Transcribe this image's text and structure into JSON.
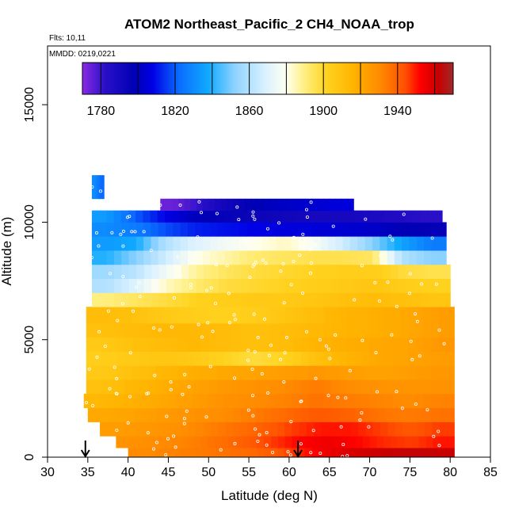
{
  "chart_data": {
    "type": "heatmap",
    "title": "ATOM2 Northeast_Pacific_2 CH4_NOAA_trop",
    "flights_label": "Flts: 10,11",
    "date_label": "MMDD: 0219,0221",
    "xlabel": "Latitude (deg N)",
    "ylabel": "Altitude (m)",
    "xlim": [
      30,
      85
    ],
    "ylim": [
      0,
      17500
    ],
    "x_ticks": [
      30,
      35,
      40,
      45,
      50,
      55,
      60,
      65,
      70,
      75,
      80,
      85
    ],
    "y_ticks": [
      0,
      5000,
      10000,
      15000
    ],
    "colorbar": {
      "min": 1770,
      "max": 1970,
      "tick_values": [
        1780,
        1820,
        1860,
        1900,
        1940
      ],
      "tick_labels": [
        "1780",
        "1820",
        "1860",
        "1900",
        "1940"
      ],
      "stops": [
        {
          "v": 1770,
          "c": "#8a2be2"
        },
        {
          "v": 1782,
          "c": "#2a0fc8"
        },
        {
          "v": 1798,
          "c": "#0000b4"
        },
        {
          "v": 1808,
          "c": "#0000e6"
        },
        {
          "v": 1822,
          "c": "#0a6cff"
        },
        {
          "v": 1838,
          "c": "#10aaff"
        },
        {
          "v": 1852,
          "c": "#8cd2ff"
        },
        {
          "v": 1868,
          "c": "#d8f0ff"
        },
        {
          "v": 1880,
          "c": "#fffff0"
        },
        {
          "v": 1890,
          "c": "#ffef80"
        },
        {
          "v": 1902,
          "c": "#ffd21e"
        },
        {
          "v": 1916,
          "c": "#ffb400"
        },
        {
          "v": 1930,
          "c": "#ff8c00"
        },
        {
          "v": 1944,
          "c": "#ff5000"
        },
        {
          "v": 1952,
          "c": "#ff0000"
        },
        {
          "v": 1962,
          "c": "#c80000"
        },
        {
          "v": 1970,
          "c": "#a02828"
        }
      ]
    },
    "profile_markers_lat": [
      34.7,
      61.1
    ],
    "layers": [
      {
        "bottom": 0,
        "top": 400,
        "lat_start": 40.0,
        "lat_end": 80.5,
        "values": [
          1930,
          1932,
          1934,
          1936,
          1938,
          1942,
          1950,
          1956,
          1960,
          1962,
          1963,
          1962
        ]
      },
      {
        "bottom": 400,
        "top": 900,
        "lat_start": 38.5,
        "lat_end": 80.5,
        "values": [
          1928,
          1930,
          1932,
          1936,
          1940,
          1946,
          1952,
          1955,
          1952,
          1948,
          1946,
          1950
        ]
      },
      {
        "bottom": 900,
        "top": 1500,
        "lat_start": 36.5,
        "lat_end": 80.5,
        "values": [
          1924,
          1926,
          1928,
          1932,
          1936,
          1940,
          1946,
          1950,
          1950,
          1946,
          1942,
          1946
        ]
      },
      {
        "bottom": 1500,
        "top": 2100,
        "lat_start": 35.0,
        "lat_end": 80.5,
        "values": [
          1920,
          1922,
          1925,
          1928,
          1930,
          1934,
          1938,
          1942,
          1940,
          1936,
          1934,
          1936
        ]
      },
      {
        "bottom": 2100,
        "top": 2700,
        "lat_start": 34.5,
        "lat_end": 80.5,
        "values": [
          1914,
          1917,
          1920,
          1924,
          1928,
          1930,
          1932,
          1936,
          1934,
          1932,
          1930,
          1932
        ]
      },
      {
        "bottom": 2700,
        "top": 3300,
        "lat_start": 34.8,
        "lat_end": 80.5,
        "values": [
          1910,
          1914,
          1918,
          1922,
          1926,
          1928,
          1930,
          1934,
          1930,
          1928,
          1927,
          1928
        ]
      },
      {
        "bottom": 3300,
        "top": 3900,
        "lat_start": 34.8,
        "lat_end": 80.5,
        "values": [
          1906,
          1910,
          1914,
          1918,
          1920,
          1922,
          1924,
          1926,
          1924,
          1922,
          1924,
          1926
        ]
      },
      {
        "bottom": 3900,
        "top": 4500,
        "lat_start": 34.8,
        "lat_end": 80.5,
        "values": [
          1904,
          1906,
          1908,
          1906,
          1902,
          1898,
          1902,
          1910,
          1916,
          1920,
          1922,
          1924
        ]
      },
      {
        "bottom": 4500,
        "top": 5100,
        "lat_start": 34.8,
        "lat_end": 80.5,
        "values": [
          1906,
          1910,
          1912,
          1914,
          1912,
          1910,
          1912,
          1916,
          1918,
          1920,
          1922,
          1926
        ]
      },
      {
        "bottom": 5100,
        "top": 5700,
        "lat_start": 34.8,
        "lat_end": 80.5,
        "values": [
          1910,
          1912,
          1914,
          1914,
          1912,
          1910,
          1912,
          1914,
          1916,
          1918,
          1920,
          1924
        ]
      },
      {
        "bottom": 5700,
        "top": 6400,
        "lat_start": 34.8,
        "lat_end": 80.5,
        "values": [
          1912,
          1910,
          1906,
          1904,
          1902,
          1904,
          1908,
          1912,
          1916,
          1918,
          1920,
          1924
        ]
      },
      {
        "bottom": 6400,
        "top": 7000,
        "lat_start": 35.5,
        "lat_end": 80.0,
        "values": [
          1890,
          1894,
          1898,
          1902,
          1904,
          1906,
          1906,
          1908,
          1910,
          1912,
          1910,
          1908
        ]
      },
      {
        "bottom": 7000,
        "top": 7600,
        "lat_start": 35.5,
        "lat_end": 80.0,
        "values": [
          1860,
          1870,
          1884,
          1892,
          1898,
          1900,
          1902,
          1904,
          1906,
          1908,
          1904,
          1902
        ]
      },
      {
        "bottom": 7600,
        "top": 8200,
        "lat_start": 35.5,
        "lat_end": 80.0,
        "values": [
          1856,
          1862,
          1876,
          1888,
          1894,
          1898,
          1900,
          1902,
          1904,
          1904,
          1898,
          1896
        ]
      },
      {
        "bottom": 8200,
        "top": 8800,
        "lat_start": 35.5,
        "lat_end": 79.5,
        "values": [
          1840,
          1852,
          1866,
          1880,
          1886,
          1892,
          1894,
          1896,
          1896,
          1894,
          1860,
          1852
        ]
      },
      {
        "bottom": 8800,
        "top": 9400,
        "lat_start": 35.5,
        "lat_end": 79.5,
        "values": [
          1834,
          1838,
          1860,
          1870,
          1876,
          1880,
          1884,
          1878,
          1866,
          1852,
          1836,
          1826
        ]
      },
      {
        "bottom": 9400,
        "top": 10000,
        "lat_start": 35.5,
        "lat_end": 79.5,
        "values": [
          1830,
          1826,
          1818,
          1812,
          1810,
          1808,
          1806,
          1805,
          1804,
          1802,
          1798,
          1796
        ]
      },
      {
        "bottom": 10000,
        "top": 10500,
        "lat_start": 35.5,
        "lat_end": 79.0,
        "values": [
          1834,
          1820,
          1808,
          1800,
          1796,
          1794,
          1792,
          1790,
          1790,
          1788,
          1786,
          1782
        ]
      },
      {
        "bottom": 10500,
        "top": 11000,
        "lat_start": 44.0,
        "lat_end": 68.0,
        "values": [
          1774,
          1780,
          1790,
          1796,
          1800,
          1802,
          1804,
          1806
        ]
      },
      {
        "bottom": 11000,
        "top": 12000,
        "lat_start": 35.5,
        "lat_end": 37.0,
        "values": [
          1830,
          1822
        ]
      }
    ]
  }
}
